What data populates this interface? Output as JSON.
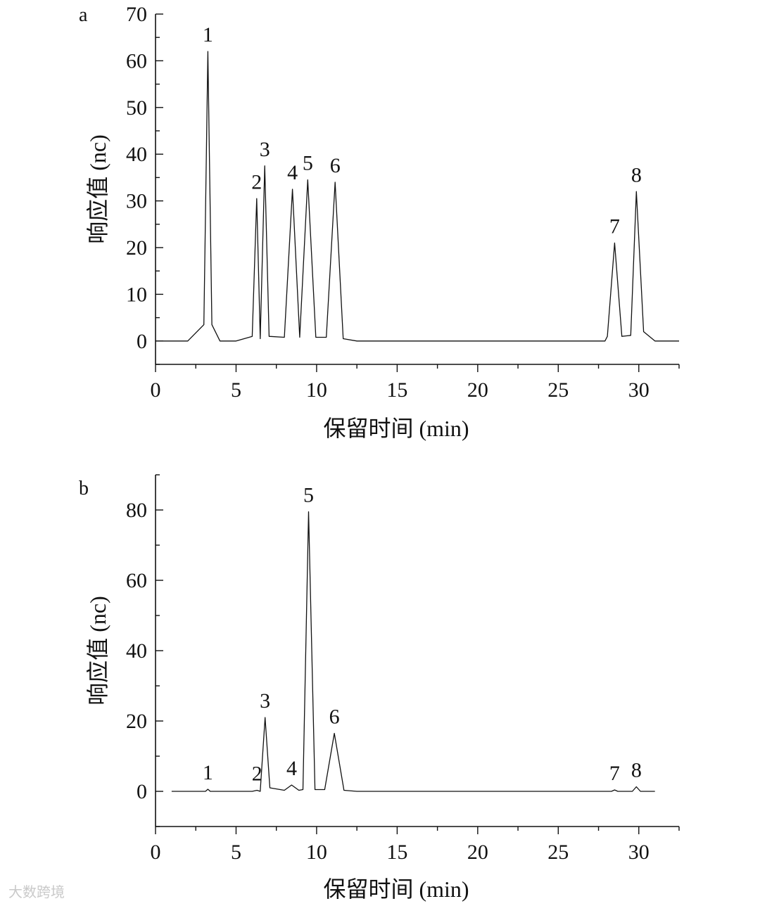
{
  "watermark": "大数跨境",
  "chart_data": [
    {
      "type": "line",
      "panel": "a",
      "ylabel": "响应值 (nc)",
      "xlabel": "保留时间 (min)",
      "xlim": [
        0,
        32.5
      ],
      "ylim": [
        -5,
        70
      ],
      "xticks": [
        0,
        5,
        10,
        15,
        20,
        25,
        30
      ],
      "yticks": [
        0,
        10,
        20,
        30,
        40,
        50,
        60,
        70
      ],
      "series": [
        {
          "x": [
            0,
            2.0,
            3.0,
            3.25,
            3.5,
            4.0,
            5.0,
            6.0,
            6.28,
            6.5,
            6.78,
            7.05,
            8.0,
            8.5,
            8.95,
            9.45,
            9.95,
            10.6,
            11.15,
            11.65,
            12.5,
            20.0,
            27.9,
            28.05,
            28.5,
            28.95,
            29.5,
            29.85,
            30.3,
            31.0,
            32.5
          ],
          "y": [
            0,
            0,
            3.5,
            62,
            3.5,
            0,
            0,
            1,
            30.5,
            0.5,
            37.5,
            1,
            0.8,
            32.5,
            0.8,
            34.5,
            0.8,
            0.8,
            34.0,
            0.5,
            0,
            0,
            0,
            1,
            21.0,
            1.0,
            1.2,
            32.0,
            2.0,
            0,
            0
          ]
        }
      ],
      "peaks": [
        {
          "label": "1",
          "x": 3.25,
          "y": 62
        },
        {
          "label": "2",
          "x": 6.28,
          "y": 30.5
        },
        {
          "label": "3",
          "x": 6.78,
          "y": 37.5
        },
        {
          "label": "4",
          "x": 8.5,
          "y": 32.5
        },
        {
          "label": "5",
          "x": 9.45,
          "y": 34.5
        },
        {
          "label": "6",
          "x": 11.15,
          "y": 34.0
        },
        {
          "label": "7",
          "x": 28.5,
          "y": 21.0
        },
        {
          "label": "8",
          "x": 29.85,
          "y": 32.0
        }
      ]
    },
    {
      "type": "line",
      "panel": "b",
      "ylabel": "响应值 (nc)",
      "xlabel": "保留时间 (min)",
      "xlim": [
        0,
        32.5
      ],
      "ylim": [
        -10,
        90
      ],
      "xticks": [
        0,
        5,
        10,
        15,
        20,
        25,
        30
      ],
      "yticks": [
        0,
        20,
        40,
        60,
        80
      ],
      "series": [
        {
          "x": [
            1.0,
            3.1,
            3.25,
            3.4,
            6.0,
            6.3,
            6.5,
            6.8,
            7.1,
            8.0,
            8.45,
            8.9,
            9.15,
            9.5,
            9.9,
            10.5,
            11.1,
            11.7,
            12.5,
            20.0,
            28.3,
            28.5,
            28.7,
            29.6,
            29.85,
            30.1,
            31.0
          ],
          "y": [
            0,
            0,
            0.6,
            0,
            0,
            0.3,
            0,
            21.0,
            1.0,
            0.3,
            1.8,
            0.3,
            0.5,
            79.5,
            0.5,
            0.5,
            16.5,
            0.3,
            0,
            0,
            0,
            0.4,
            0,
            0,
            1.3,
            0,
            0
          ]
        }
      ],
      "peaks": [
        {
          "label": "1",
          "x": 3.25,
          "y": 0.6
        },
        {
          "label": "2",
          "x": 6.3,
          "y": 0.3
        },
        {
          "label": "3",
          "x": 6.8,
          "y": 21.0
        },
        {
          "label": "4",
          "x": 8.45,
          "y": 1.8
        },
        {
          "label": "5",
          "x": 9.5,
          "y": 79.5
        },
        {
          "label": "6",
          "x": 11.1,
          "y": 16.5
        },
        {
          "label": "7",
          "x": 28.5,
          "y": 0.4
        },
        {
          "label": "8",
          "x": 29.85,
          "y": 1.3
        }
      ]
    }
  ]
}
